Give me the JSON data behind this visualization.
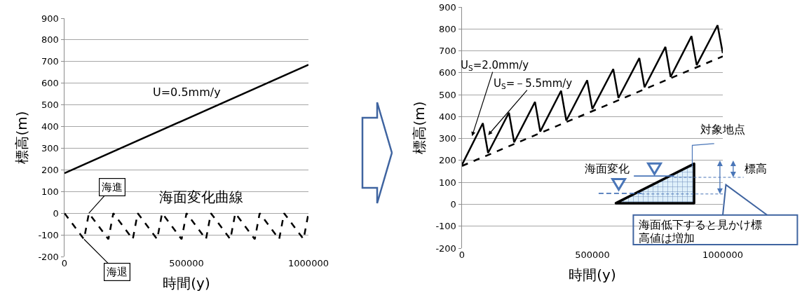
{
  "chart_data": [
    {
      "type": "line",
      "xlabel": "時間(y)",
      "ylabel": "標高(m)",
      "xlim": [
        0,
        1000000
      ],
      "xticks": [
        0,
        500000,
        1000000
      ],
      "ylim": [
        -200,
        900
      ],
      "yticks": [
        -200,
        -100,
        0,
        100,
        200,
        300,
        400,
        500,
        600,
        700,
        800,
        900
      ],
      "grid": "y",
      "series": [
        {
          "name": "U=0.5mm/y",
          "color": "#000000",
          "line_style": "solid",
          "x": [
            0,
            1000000
          ],
          "values": [
            185,
            685
          ]
        },
        {
          "name": "海面変化曲線",
          "color": "#000000",
          "line_style": "dashed",
          "x": [
            0,
            80000,
            100000,
            180000,
            200000,
            280000,
            300000,
            380000,
            400000,
            480000,
            500000,
            580000,
            600000,
            680000,
            700000,
            780000,
            800000,
            880000,
            900000,
            980000,
            1000000
          ],
          "values": [
            0,
            -120,
            0,
            -120,
            0,
            -120,
            0,
            -120,
            0,
            -120,
            0,
            -120,
            0,
            -120,
            0,
            -120,
            0,
            -120,
            0,
            -120,
            0
          ]
        }
      ],
      "annotations": [
        {
          "text": "海進",
          "x": 100000,
          "y": 0
        },
        {
          "text": "海退",
          "x": 80000,
          "y": -120
        }
      ]
    },
    {
      "type": "line",
      "xlabel": "時間(y)",
      "ylabel": "標高(m)",
      "xlim": [
        0,
        1000000
      ],
      "xticks": [
        0,
        500000,
        1000000
      ],
      "ylim": [
        -200,
        900
      ],
      "yticks": [
        -200,
        -100,
        0,
        100,
        200,
        300,
        400,
        500,
        600,
        700,
        800,
        900
      ],
      "grid": "y",
      "series": [
        {
          "color": "#000000",
          "line_style": "solid",
          "x": [
            0,
            80000,
            100000,
            180000,
            200000,
            280000,
            300000,
            380000,
            400000,
            480000,
            500000,
            580000,
            600000,
            680000,
            700000,
            780000,
            800000,
            880000,
            900000,
            980000,
            1000000
          ],
          "values": [
            180,
            370,
            234,
            418,
            283,
            467,
            332,
            518,
            382,
            566,
            435,
            617,
            485,
            667,
            534,
            718,
            581,
            767,
            635,
            817,
            690
          ]
        },
        {
          "color": "#000000",
          "line_style": "dashed",
          "x": [
            0,
            1000000
          ],
          "values": [
            175,
            675
          ]
        }
      ],
      "annotations": [
        {
          "text": "U$_{S}$=2.0mm/y",
          "x": 37000,
          "y": 305
        },
        {
          "text": "U$_{S}$=－5.5mm/y",
          "x": 97000,
          "y": 311
        },
        "対象地点",
        "海面変化",
        "標高",
        "海面低下すると見かけ標高値は増加"
      ]
    }
  ]
}
